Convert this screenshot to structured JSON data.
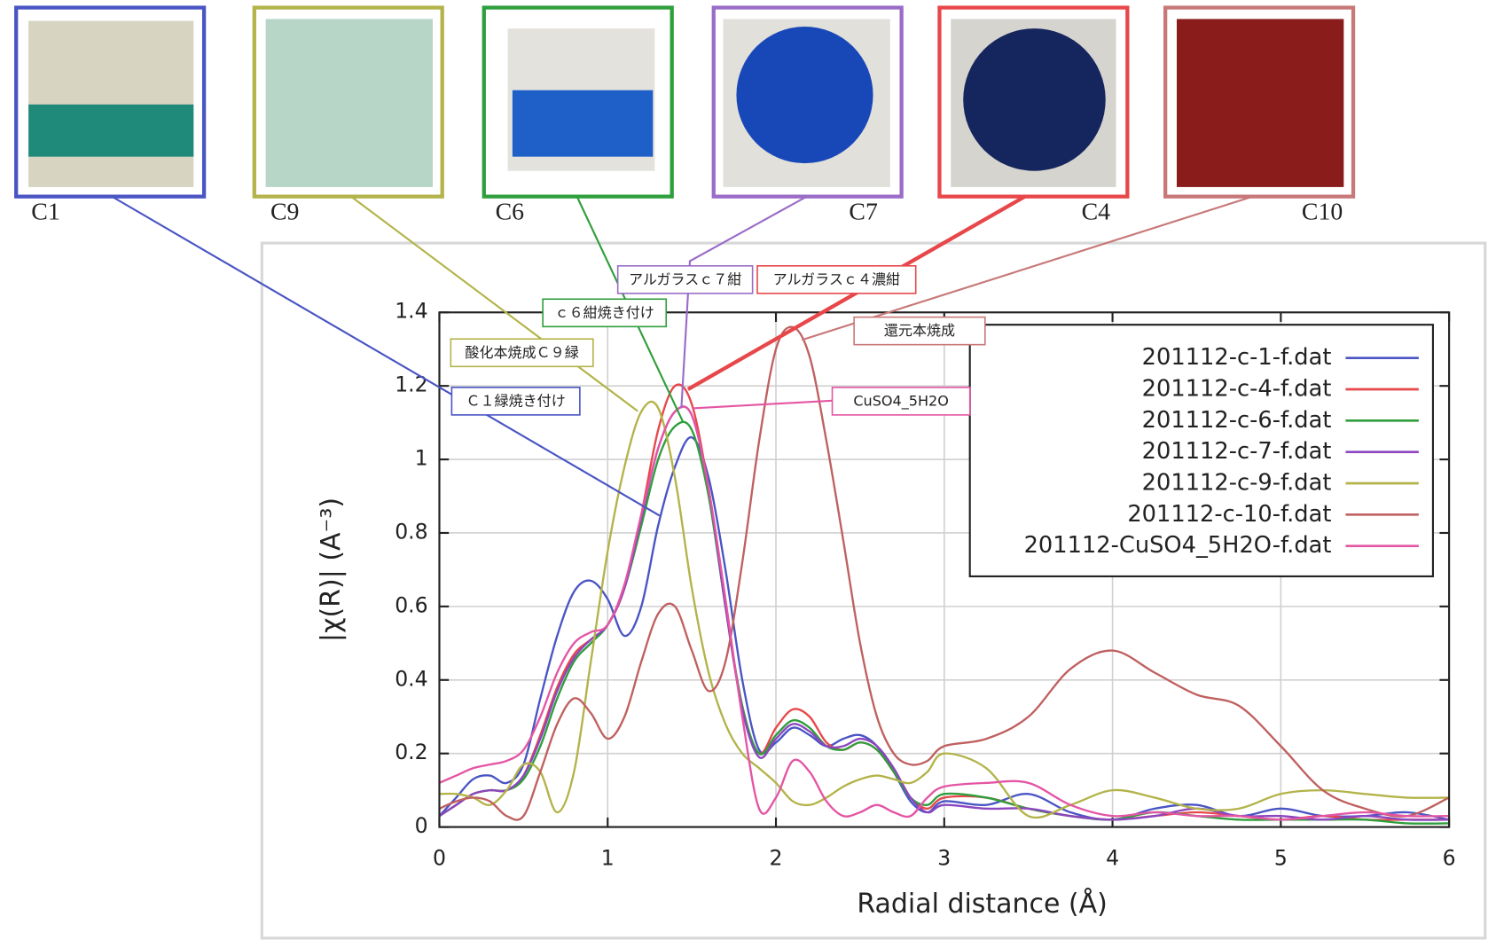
{
  "chart_data": {
    "type": "line",
    "photo_labels": [
      "C1",
      "C9",
      "C6",
      "C7",
      "C4",
      "C10"
    ],
    "annotations": [
      "Ｃ１緑焼き付け",
      "酸化本焼成Ｃ９緑",
      "ｃ６紺焼き付け",
      "アルガラスｃ７紺",
      "アルガラスｃ４濃紺",
      "還元本焼成",
      "CuSO4_5H2O"
    ],
    "xlabel": "Radial distance   (Å)",
    "ylabel": "|χ(R)|   (A⁻³)",
    "xlim": [
      0,
      6
    ],
    "ylim": [
      0,
      1.4
    ],
    "xticks": [
      0,
      1,
      2,
      3,
      4,
      5,
      6
    ],
    "yticks": [
      0,
      0.2,
      0.4,
      0.6,
      0.8,
      1,
      1.2,
      1.4
    ],
    "grid": true,
    "legend": "upper right",
    "x": [
      0,
      0.1,
      0.2,
      0.3,
      0.4,
      0.5,
      0.6,
      0.7,
      0.8,
      0.9,
      1,
      1.1,
      1.2,
      1.3,
      1.4,
      1.5,
      1.6,
      1.7,
      1.8,
      1.9,
      2,
      2.1,
      2.2,
      2.3,
      2.4,
      2.5,
      2.6,
      2.7,
      2.8,
      2.9,
      3,
      3.25,
      3.5,
      3.75,
      4,
      4.25,
      4.5,
      4.75,
      5,
      5.25,
      5.5,
      5.75,
      6
    ],
    "series": [
      {
        "name": "201112-c-1-f.dat",
        "color": "#4a55c4",
        "values": [
          0.03,
          0.08,
          0.13,
          0.14,
          0.12,
          0.17,
          0.35,
          0.52,
          0.64,
          0.67,
          0.62,
          0.52,
          0.6,
          0.82,
          0.98,
          1.06,
          0.95,
          0.7,
          0.4,
          0.21,
          0.23,
          0.27,
          0.25,
          0.22,
          0.24,
          0.25,
          0.22,
          0.15,
          0.07,
          0.04,
          0.07,
          0.06,
          0.09,
          0.04,
          0.02,
          0.05,
          0.06,
          0.03,
          0.05,
          0.03,
          0.03,
          0.04,
          0.02
        ]
      },
      {
        "name": "201112-c-4-f.dat",
        "color": "#e8474a",
        "values": [
          0.03,
          0.06,
          0.09,
          0.1,
          0.1,
          0.14,
          0.25,
          0.38,
          0.47,
          0.51,
          0.55,
          0.65,
          0.85,
          1.08,
          1.2,
          1.15,
          0.92,
          0.6,
          0.32,
          0.2,
          0.27,
          0.32,
          0.3,
          0.23,
          0.21,
          0.23,
          0.21,
          0.15,
          0.08,
          0.05,
          0.08,
          0.08,
          0.05,
          0.03,
          0.02,
          0.03,
          0.04,
          0.03,
          0.02,
          0.03,
          0.02,
          0.02,
          0.02
        ]
      },
      {
        "name": "201112-c-6-f.dat",
        "color": "#2f9e3c",
        "values": [
          0.03,
          0.06,
          0.09,
          0.1,
          0.1,
          0.13,
          0.22,
          0.35,
          0.45,
          0.5,
          0.55,
          0.65,
          0.82,
          1.0,
          1.09,
          1.08,
          0.9,
          0.6,
          0.33,
          0.2,
          0.25,
          0.29,
          0.27,
          0.22,
          0.21,
          0.23,
          0.21,
          0.15,
          0.08,
          0.06,
          0.09,
          0.08,
          0.05,
          0.03,
          0.02,
          0.04,
          0.03,
          0.02,
          0.02,
          0.02,
          0.02,
          0.01,
          0.01
        ]
      },
      {
        "name": "201112-c-7-f.dat",
        "color": "#8c46c0",
        "values": [
          0.03,
          0.06,
          0.09,
          0.1,
          0.1,
          0.14,
          0.24,
          0.37,
          0.46,
          0.51,
          0.55,
          0.65,
          0.84,
          1.03,
          1.13,
          1.12,
          0.92,
          0.6,
          0.32,
          0.19,
          0.24,
          0.28,
          0.26,
          0.22,
          0.22,
          0.24,
          0.22,
          0.16,
          0.08,
          0.04,
          0.06,
          0.05,
          0.05,
          0.03,
          0.02,
          0.03,
          0.05,
          0.03,
          0.03,
          0.02,
          0.03,
          0.02,
          0.02
        ]
      },
      {
        "name": "201112-c-9-f.dat",
        "color": "#b3b34a",
        "values": [
          0.09,
          0.09,
          0.08,
          0.06,
          0.1,
          0.17,
          0.15,
          0.04,
          0.15,
          0.45,
          0.75,
          0.98,
          1.13,
          1.14,
          0.95,
          0.65,
          0.42,
          0.28,
          0.2,
          0.16,
          0.12,
          0.07,
          0.06,
          0.08,
          0.11,
          0.13,
          0.14,
          0.13,
          0.12,
          0.15,
          0.2,
          0.16,
          0.03,
          0.06,
          0.1,
          0.08,
          0.05,
          0.05,
          0.09,
          0.1,
          0.09,
          0.08,
          0.08
        ]
      },
      {
        "name": "201112-c-10-f.dat",
        "color": "#c06060",
        "values": [
          0.05,
          0.07,
          0.08,
          0.07,
          0.03,
          0.03,
          0.15,
          0.28,
          0.35,
          0.31,
          0.24,
          0.3,
          0.45,
          0.58,
          0.6,
          0.48,
          0.37,
          0.45,
          0.72,
          1.05,
          1.3,
          1.36,
          1.28,
          1.05,
          0.78,
          0.5,
          0.3,
          0.2,
          0.17,
          0.18,
          0.22,
          0.24,
          0.3,
          0.43,
          0.48,
          0.42,
          0.36,
          0.33,
          0.22,
          0.1,
          0.05,
          0.03,
          0.08
        ]
      },
      {
        "name": "201112-CuSO4_5H2O-f.dat",
        "color": "#e455a4",
        "values": [
          0.12,
          0.14,
          0.16,
          0.17,
          0.18,
          0.21,
          0.3,
          0.42,
          0.5,
          0.53,
          0.55,
          0.66,
          0.85,
          1.03,
          1.13,
          1.12,
          0.92,
          0.62,
          0.3,
          0.05,
          0.08,
          0.18,
          0.15,
          0.07,
          0.03,
          0.04,
          0.06,
          0.04,
          0.03,
          0.08,
          0.11,
          0.12,
          0.12,
          0.06,
          0.03,
          0.04,
          0.03,
          0.03,
          0.02,
          0.03,
          0.04,
          0.03,
          0.03
        ]
      }
    ]
  }
}
